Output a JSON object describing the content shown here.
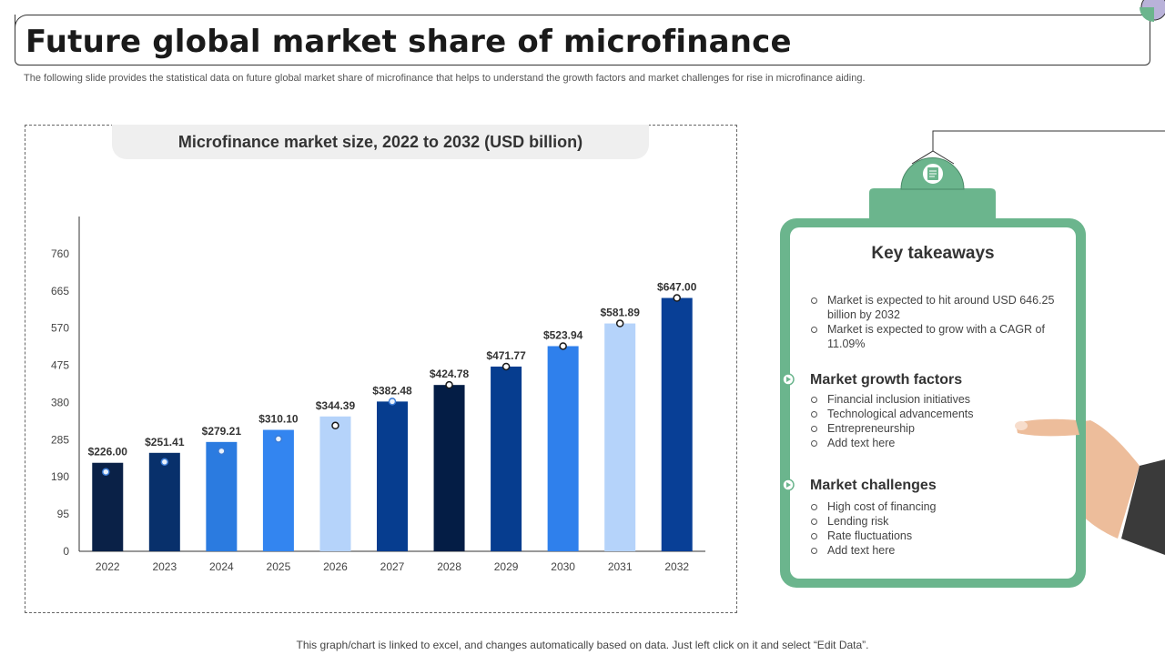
{
  "page": {
    "title": "Future global market share of microfinance",
    "subtitle": "The following slide provides the statistical data on future global market share of microfinance that helps to understand the growth factors and market challenges for rise in microfinance aiding.",
    "footer": "This graph/chart is linked to excel,  and changes automatically based on data. Just left click on it and select “Edit Data”."
  },
  "chart_data": {
    "type": "bar",
    "title": "Microfinance market size, 2022 to 2032 (USD billion)",
    "xlabel": "",
    "ylabel": "",
    "categories": [
      "2022",
      "2023",
      "2024",
      "2025",
      "2026",
      "2027",
      "2028",
      "2029",
      "2030",
      "2031",
      "2032"
    ],
    "values": [
      226.0,
      251.41,
      279.21,
      310.1,
      344.39,
      382.48,
      424.78,
      471.77,
      523.94,
      581.89,
      647.0
    ],
    "data_labels": [
      "$226.00",
      "$251.41",
      "$279.21",
      "$310.10",
      "$344.39",
      "$382.48",
      "$424.78",
      "$471.77",
      "$523.94",
      "$581.89",
      "$647.00"
    ],
    "bar_colors": [
      "#0a2147",
      "#08306b",
      "#2b7be0",
      "#3385f0",
      "#b5d3fa",
      "#063d8f",
      "#041d45",
      "#063d8f",
      "#2f80ec",
      "#b5d3fa",
      "#083f96"
    ],
    "y_ticks": [
      0,
      95,
      190,
      285,
      380,
      475,
      570,
      665,
      760
    ],
    "ylim": [
      0,
      855
    ],
    "grid": false,
    "legend": "none"
  },
  "takeaways": {
    "heading": "Key takeaways",
    "summary": [
      "Market is expected to hit around USD 646.25 billion by 2032",
      "Market is expected to grow with a CAGR of 11.09%"
    ],
    "growth_title": "Market growth factors",
    "growth_items": [
      "Financial inclusion initiatives",
      "Technological advancements",
      "Entrepreneurship",
      "Add text here"
    ],
    "challenges_title": "Market challenges",
    "challenges_items": [
      "High cost of financing",
      "Lending risk",
      "Rate fluctuations",
      "Add text here"
    ]
  },
  "colors": {
    "clipboard_green": "#6bb58d",
    "axis": "#333333",
    "marker_fill": "#ffffff",
    "marker_stroke": "#1a1a1a"
  }
}
